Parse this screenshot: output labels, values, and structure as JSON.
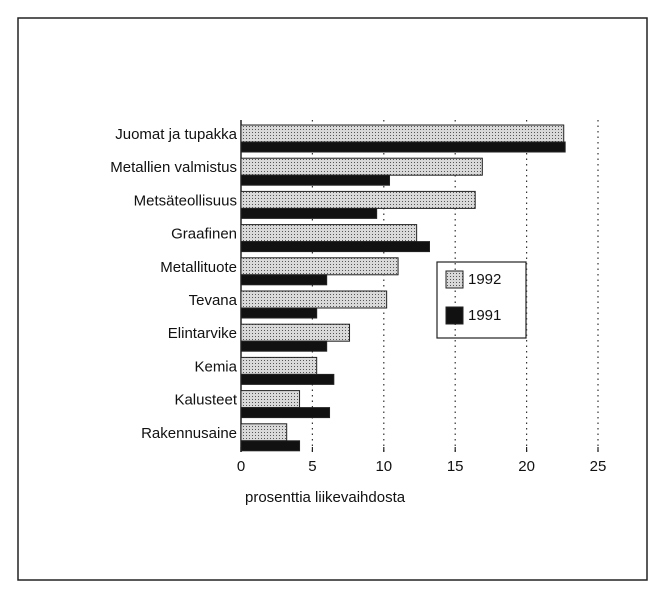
{
  "chart_data": {
    "type": "hbar",
    "categories": [
      "Juomat ja tupakka",
      "Metallien valmistus",
      "Metsäteollisuus",
      "Graafinen",
      "Metallituote",
      "Tevana",
      "Elintarvike",
      "Kemia",
      "Kalusteet",
      "Rakennusaine"
    ],
    "series": [
      {
        "name": "1992",
        "color": "#d9d9d9",
        "values": [
          22.6,
          16.9,
          16.4,
          12.3,
          11.0,
          10.2,
          7.6,
          5.3,
          4.1,
          3.2
        ]
      },
      {
        "name": "1991",
        "color": "#111111",
        "values": [
          22.7,
          10.4,
          9.5,
          13.2,
          6.0,
          5.3,
          6.0,
          6.5,
          6.2,
          4.1
        ]
      }
    ],
    "xlabel": "prosenttia  liikevaihdosta",
    "xlim": [
      0,
      25
    ],
    "xticks": [
      0,
      5,
      10,
      15,
      20,
      25
    ],
    "grid": true
  }
}
